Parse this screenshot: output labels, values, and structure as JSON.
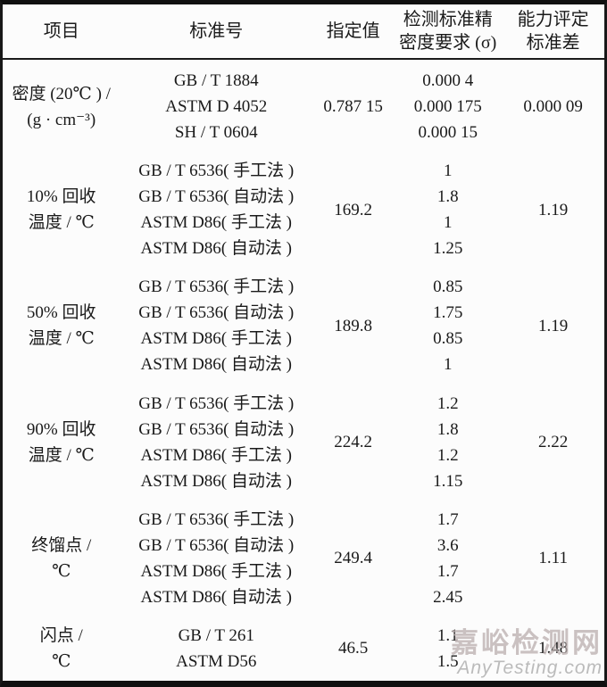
{
  "header": {
    "col1": "项目",
    "col2": "标准号",
    "col3": "指定值",
    "col4_line1": "检测标准精",
    "col4_line2": "密度要求 (σ)",
    "col5_line1": "能力评定",
    "col5_line2": "标准差"
  },
  "rows": [
    {
      "item_line1": "密度 (20℃ ) /",
      "item_line2": "(g · cm⁻³)",
      "standards": [
        "GB / T 1884",
        "ASTM D 4052",
        "SH / T 0604"
      ],
      "specified_value": "0.787 15",
      "precisions": [
        "0.000 4",
        "0.000 175",
        "0.000 15"
      ],
      "capability_std": "0.000 09"
    },
    {
      "item_line1": "10% 回收",
      "item_line2": "温度 / ℃",
      "standards": [
        "GB / T 6536( 手工法 )",
        "GB / T 6536( 自动法 )",
        "ASTM D86( 手工法 )",
        "ASTM D86( 自动法 )"
      ],
      "specified_value": "169.2",
      "precisions": [
        "1",
        "1.8",
        "1",
        "1.25"
      ],
      "capability_std": "1.19"
    },
    {
      "item_line1": "50% 回收",
      "item_line2": "温度 / ℃",
      "standards": [
        "GB / T 6536( 手工法 )",
        "GB / T 6536( 自动法 )",
        "ASTM D86( 手工法 )",
        "ASTM D86( 自动法 )"
      ],
      "specified_value": "189.8",
      "precisions": [
        "0.85",
        "1.75",
        "0.85",
        "1"
      ],
      "capability_std": "1.19"
    },
    {
      "item_line1": "90% 回收",
      "item_line2": "温度 / ℃",
      "standards": [
        "GB / T 6536( 手工法 )",
        "GB / T 6536( 自动法 )",
        "ASTM D86( 手工法 )",
        "ASTM D86( 自动法 )"
      ],
      "specified_value": "224.2",
      "precisions": [
        "1.2",
        "1.8",
        "1.2",
        "1.15"
      ],
      "capability_std": "2.22"
    },
    {
      "item_line1": "终馏点 /",
      "item_line2": "℃",
      "standards": [
        "GB / T 6536( 手工法 )",
        "GB / T 6536( 自动法 )",
        "ASTM D86( 手工法 )",
        "ASTM D86( 自动法 )"
      ],
      "specified_value": "249.4",
      "precisions": [
        "1.7",
        "3.6",
        "1.7",
        "2.45"
      ],
      "capability_std": "1.11"
    },
    {
      "item_line1": "闪点 /",
      "item_line2": "℃",
      "standards": [
        "GB / T 261",
        "ASTM D56"
      ],
      "specified_value": "46.5",
      "precisions": [
        "1.1",
        "1.5"
      ],
      "capability_std": "1.48"
    }
  ],
  "watermark": {
    "line1": "嘉峪检测网",
    "line2": "AnyTesting.com"
  },
  "colors": {
    "text": "#1a1a1a",
    "border": "#101010",
    "background": "#fcfcfc",
    "watermark_cn": "#baaeae",
    "watermark_en": "#aaaaaa"
  }
}
